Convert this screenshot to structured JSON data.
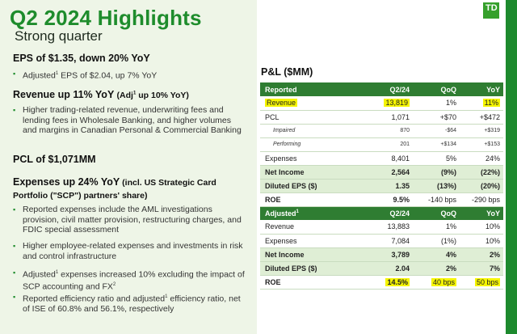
{
  "title": "Q2 2024 Highlights",
  "subtitle": "Strong quarter",
  "logo_text": "TD",
  "left": {
    "eps_heading": "EPS of $1.35, down 20% YoY",
    "eps_bullet_pre": "Adjusted",
    "eps_bullet_post": " EPS of $2.04, up 7% YoY",
    "revenue_heading": "Revenue up 11% YoY",
    "revenue_heading_adj": "(Adj",
    "revenue_heading_adj2": " up 10% YoY)",
    "revenue_bullet": "Higher trading-related revenue, underwriting fees and lending fees in Wholesale Banking, and higher volumes and margins in Canadian Personal & Commercial Banking",
    "pcl_heading": "PCL of $1,071MM",
    "expenses_heading_1": "Expenses up 24% YoY",
    "expenses_heading_2": " (incl. US Strategic Card Portfolio (\"SCP\") partners' share)",
    "exp_bullet_1": "Reported expenses include the AML investigations provision, civil matter provision, restructuring charges, and FDIC special assessment",
    "exp_bullet_2": "Higher employee-related expenses and investments in risk and control infrastructure",
    "exp_bullet_3_pre": "Adjusted",
    "exp_bullet_3_mid": " expenses increased 10% excluding the impact of SCP accounting and FX",
    "exp_bullet_4_pre": "Reported efficiency ratio and adjusted",
    "exp_bullet_4_post": " efficiency ratio, net of ISE of 60.8% and 56.1%, respectively",
    "sup1": "1",
    "sup2": "2"
  },
  "pl": {
    "title": "P&L ($MM)",
    "reported_header": {
      "label": "Reported",
      "c1": "Q2/24",
      "c2": "QoQ",
      "c3": "YoY"
    },
    "reported_rows": [
      {
        "label": "Revenue",
        "q": "13,819",
        "qoq": "1%",
        "yoy": "11%"
      },
      {
        "label": "PCL",
        "q": "1,071",
        "qoq": "+$70",
        "yoy": "+$472"
      },
      {
        "label": "Impaired",
        "q": "870",
        "qoq": "-$64",
        "yoy": "+$319"
      },
      {
        "label": "Performing",
        "q": "201",
        "qoq": "+$134",
        "yoy": "+$153"
      },
      {
        "label": "Expenses",
        "q": "8,401",
        "qoq": "5%",
        "yoy": "24%"
      },
      {
        "label": "Net Income",
        "q": "2,564",
        "qoq": "(9%)",
        "yoy": "(22%)"
      },
      {
        "label": "Diluted EPS ($)",
        "q": "1.35",
        "qoq": "(13%)",
        "yoy": "(20%)"
      },
      {
        "label": "ROE",
        "q": "9.5%",
        "qoq": "-140 bps",
        "yoy": "-290 bps"
      }
    ],
    "adjusted_header": {
      "label": "Adjusted",
      "sup": "1",
      "c1": "Q2/24",
      "c2": "QoQ",
      "c3": "YoY"
    },
    "adjusted_rows": [
      {
        "label": "Revenue",
        "q": "13,883",
        "qoq": "1%",
        "yoy": "10%"
      },
      {
        "label": "Expenses",
        "q": "7,084",
        "qoq": "(1%)",
        "yoy": "10%"
      },
      {
        "label": "Net Income",
        "q": "3,789",
        "qoq": "4%",
        "yoy": "2%"
      },
      {
        "label": "Diluted EPS ($)",
        "q": "2.04",
        "qoq": "2%",
        "yoy": "7%"
      },
      {
        "label": "ROE",
        "q": "14.5%",
        "qoq": "40 bps",
        "yoy": "50 bps"
      }
    ]
  }
}
